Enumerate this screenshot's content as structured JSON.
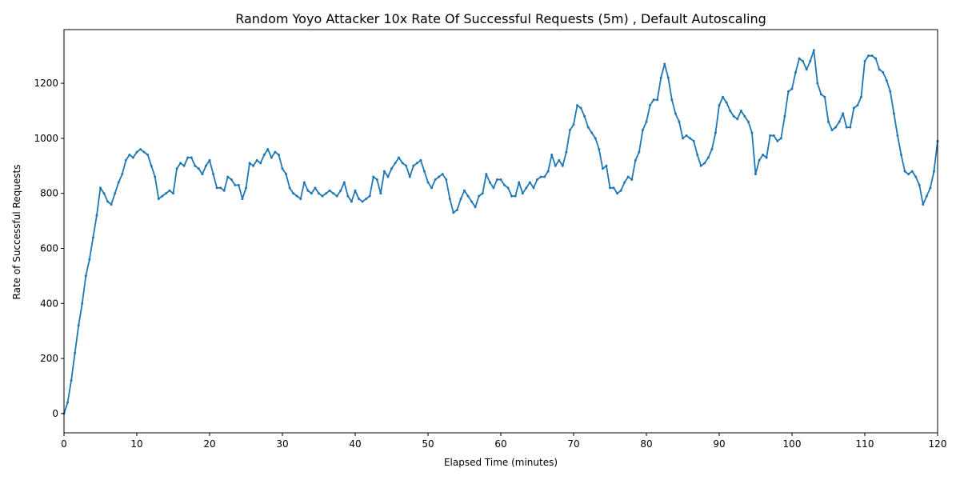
{
  "chart_data": {
    "type": "line",
    "title": "Random Yoyo Attacker 10x Rate Of Successful Requests (5m) , Default Autoscaling",
    "xlabel": "Elapsed Time (minutes)",
    "ylabel": "Rate of Successful Requests",
    "xlim": [
      0,
      120
    ],
    "ylim": [
      -70,
      1395
    ],
    "xticks": [
      0,
      10,
      20,
      30,
      40,
      50,
      60,
      70,
      80,
      90,
      100,
      110,
      120
    ],
    "yticks": [
      0,
      200,
      400,
      600,
      800,
      1000,
      1200
    ],
    "grid": false,
    "legend": "none",
    "series_color": "#1f77b4",
    "marker": "dot",
    "points": [
      [
        0,
        0
      ],
      [
        0.5,
        40
      ],
      [
        1,
        120
      ],
      [
        1.5,
        220
      ],
      [
        2,
        320
      ],
      [
        2.5,
        400
      ],
      [
        3,
        500
      ],
      [
        3.5,
        560
      ],
      [
        4,
        640
      ],
      [
        4.5,
        720
      ],
      [
        5,
        820
      ],
      [
        5.5,
        800
      ],
      [
        6,
        770
      ],
      [
        6.5,
        760
      ],
      [
        7,
        800
      ],
      [
        7.5,
        840
      ],
      [
        8,
        870
      ],
      [
        8.5,
        920
      ],
      [
        9,
        940
      ],
      [
        9.5,
        930
      ],
      [
        10,
        950
      ],
      [
        10.5,
        960
      ],
      [
        11,
        950
      ],
      [
        11.5,
        940
      ],
      [
        12,
        900
      ],
      [
        12.5,
        860
      ],
      [
        13,
        780
      ],
      [
        13.5,
        790
      ],
      [
        14,
        800
      ],
      [
        14.5,
        810
      ],
      [
        15,
        800
      ],
      [
        15.5,
        890
      ],
      [
        16,
        910
      ],
      [
        16.5,
        900
      ],
      [
        17,
        930
      ],
      [
        17.5,
        930
      ],
      [
        18,
        900
      ],
      [
        18.5,
        890
      ],
      [
        19,
        870
      ],
      [
        19.5,
        900
      ],
      [
        20,
        920
      ],
      [
        20.5,
        870
      ],
      [
        21,
        820
      ],
      [
        21.5,
        820
      ],
      [
        22,
        810
      ],
      [
        22.5,
        860
      ],
      [
        23,
        850
      ],
      [
        23.5,
        830
      ],
      [
        24,
        830
      ],
      [
        24.5,
        780
      ],
      [
        25,
        820
      ],
      [
        25.5,
        910
      ],
      [
        26,
        900
      ],
      [
        26.5,
        920
      ],
      [
        27,
        910
      ],
      [
        27.5,
        940
      ],
      [
        28,
        960
      ],
      [
        28.5,
        930
      ],
      [
        29,
        950
      ],
      [
        29.5,
        940
      ],
      [
        30,
        890
      ],
      [
        30.5,
        870
      ],
      [
        31,
        820
      ],
      [
        31.5,
        800
      ],
      [
        32,
        790
      ],
      [
        32.5,
        780
      ],
      [
        33,
        840
      ],
      [
        33.5,
        810
      ],
      [
        34,
        800
      ],
      [
        34.5,
        820
      ],
      [
        35,
        800
      ],
      [
        35.5,
        790
      ],
      [
        36,
        800
      ],
      [
        36.5,
        810
      ],
      [
        37,
        800
      ],
      [
        37.5,
        790
      ],
      [
        38,
        810
      ],
      [
        38.5,
        840
      ],
      [
        39,
        790
      ],
      [
        39.5,
        770
      ],
      [
        40,
        810
      ],
      [
        40.5,
        780
      ],
      [
        41,
        770
      ],
      [
        41.5,
        780
      ],
      [
        42,
        790
      ],
      [
        42.5,
        860
      ],
      [
        43,
        850
      ],
      [
        43.5,
        800
      ],
      [
        44,
        880
      ],
      [
        44.5,
        860
      ],
      [
        45,
        890
      ],
      [
        45.5,
        910
      ],
      [
        46,
        930
      ],
      [
        46.5,
        910
      ],
      [
        47,
        900
      ],
      [
        47.5,
        860
      ],
      [
        48,
        900
      ],
      [
        48.5,
        910
      ],
      [
        49,
        920
      ],
      [
        49.5,
        880
      ],
      [
        50,
        840
      ],
      [
        50.5,
        820
      ],
      [
        51,
        850
      ],
      [
        51.5,
        860
      ],
      [
        52,
        870
      ],
      [
        52.5,
        850
      ],
      [
        53,
        780
      ],
      [
        53.5,
        730
      ],
      [
        54,
        740
      ],
      [
        54.5,
        780
      ],
      [
        55,
        810
      ],
      [
        55.5,
        790
      ],
      [
        56,
        770
      ],
      [
        56.5,
        750
      ],
      [
        57,
        790
      ],
      [
        57.5,
        800
      ],
      [
        58,
        870
      ],
      [
        58.5,
        840
      ],
      [
        59,
        820
      ],
      [
        59.5,
        850
      ],
      [
        60,
        850
      ],
      [
        60.5,
        830
      ],
      [
        61,
        820
      ],
      [
        61.5,
        790
      ],
      [
        62,
        790
      ],
      [
        62.5,
        840
      ],
      [
        63,
        800
      ],
      [
        63.5,
        820
      ],
      [
        64,
        840
      ],
      [
        64.5,
        820
      ],
      [
        65,
        850
      ],
      [
        65.5,
        860
      ],
      [
        66,
        860
      ],
      [
        66.5,
        880
      ],
      [
        67,
        940
      ],
      [
        67.5,
        900
      ],
      [
        68,
        920
      ],
      [
        68.5,
        900
      ],
      [
        69,
        950
      ],
      [
        69.5,
        1030
      ],
      [
        70,
        1050
      ],
      [
        70.5,
        1120
      ],
      [
        71,
        1110
      ],
      [
        71.5,
        1080
      ],
      [
        72,
        1040
      ],
      [
        72.5,
        1020
      ],
      [
        73,
        1000
      ],
      [
        73.5,
        960
      ],
      [
        74,
        890
      ],
      [
        74.5,
        900
      ],
      [
        75,
        820
      ],
      [
        75.5,
        820
      ],
      [
        76,
        800
      ],
      [
        76.5,
        810
      ],
      [
        77,
        840
      ],
      [
        77.5,
        860
      ],
      [
        78,
        850
      ],
      [
        78.5,
        920
      ],
      [
        79,
        950
      ],
      [
        79.5,
        1030
      ],
      [
        80,
        1060
      ],
      [
        80.5,
        1120
      ],
      [
        81,
        1140
      ],
      [
        81.5,
        1140
      ],
      [
        82,
        1220
      ],
      [
        82.5,
        1270
      ],
      [
        83,
        1220
      ],
      [
        83.5,
        1140
      ],
      [
        84,
        1090
      ],
      [
        84.5,
        1060
      ],
      [
        85,
        1000
      ],
      [
        85.5,
        1010
      ],
      [
        86,
        1000
      ],
      [
        86.5,
        990
      ],
      [
        87,
        940
      ],
      [
        87.5,
        900
      ],
      [
        88,
        910
      ],
      [
        88.5,
        930
      ],
      [
        89,
        960
      ],
      [
        89.5,
        1020
      ],
      [
        90,
        1120
      ],
      [
        90.5,
        1150
      ],
      [
        91,
        1130
      ],
      [
        91.5,
        1100
      ],
      [
        92,
        1080
      ],
      [
        92.5,
        1070
      ],
      [
        93,
        1100
      ],
      [
        93.5,
        1080
      ],
      [
        94,
        1060
      ],
      [
        94.5,
        1020
      ],
      [
        95,
        870
      ],
      [
        95.5,
        920
      ],
      [
        96,
        940
      ],
      [
        96.5,
        930
      ],
      [
        97,
        1010
      ],
      [
        97.5,
        1010
      ],
      [
        98,
        990
      ],
      [
        98.5,
        1000
      ],
      [
        99,
        1080
      ],
      [
        99.5,
        1170
      ],
      [
        100,
        1180
      ],
      [
        100.5,
        1240
      ],
      [
        101,
        1290
      ],
      [
        101.5,
        1280
      ],
      [
        102,
        1250
      ],
      [
        102.5,
        1280
      ],
      [
        103,
        1320
      ],
      [
        103.5,
        1200
      ],
      [
        104,
        1160
      ],
      [
        104.5,
        1150
      ],
      [
        105,
        1060
      ],
      [
        105.5,
        1030
      ],
      [
        106,
        1040
      ],
      [
        106.5,
        1060
      ],
      [
        107,
        1090
      ],
      [
        107.5,
        1040
      ],
      [
        108,
        1040
      ],
      [
        108.5,
        1110
      ],
      [
        109,
        1120
      ],
      [
        109.5,
        1150
      ],
      [
        110,
        1280
      ],
      [
        110.5,
        1300
      ],
      [
        111,
        1300
      ],
      [
        111.5,
        1290
      ],
      [
        112,
        1250
      ],
      [
        112.5,
        1240
      ],
      [
        113,
        1210
      ],
      [
        113.5,
        1170
      ],
      [
        114,
        1090
      ],
      [
        114.5,
        1010
      ],
      [
        115,
        940
      ],
      [
        115.5,
        880
      ],
      [
        116,
        870
      ],
      [
        116.5,
        880
      ],
      [
        117,
        860
      ],
      [
        117.5,
        830
      ],
      [
        118,
        760
      ],
      [
        118.5,
        790
      ],
      [
        119,
        820
      ],
      [
        119.5,
        880
      ],
      [
        120,
        990
      ]
    ]
  }
}
